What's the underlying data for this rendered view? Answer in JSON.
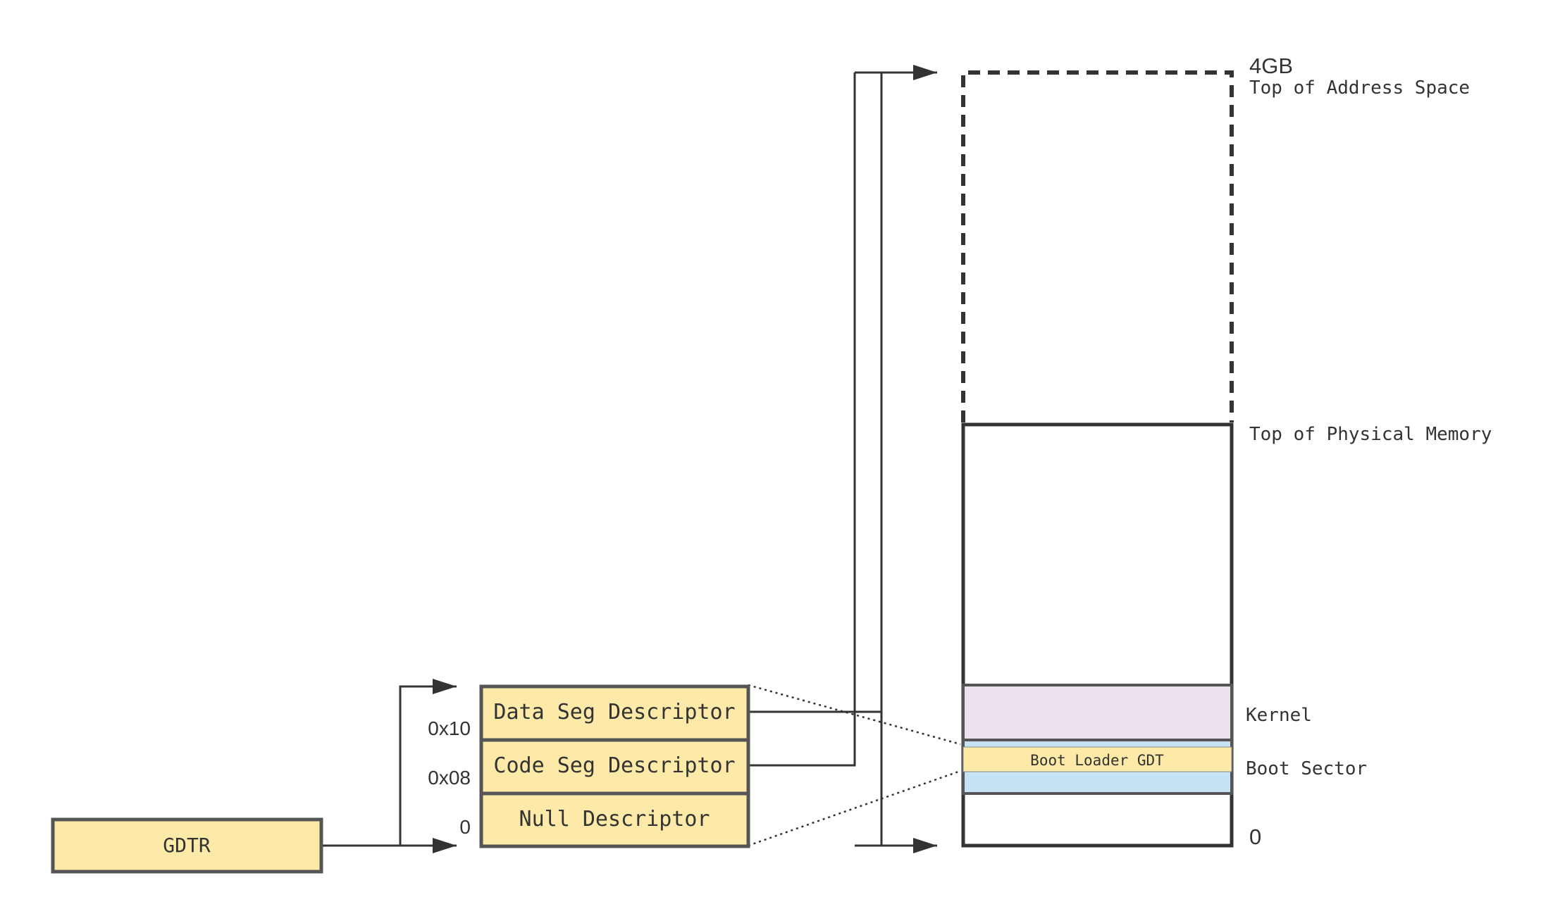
{
  "gdtr": {
    "label": "GDTR"
  },
  "gdt": {
    "entries": [
      {
        "label": "Data Seg Descriptor",
        "offset": "0x10"
      },
      {
        "label": "Code Seg Descriptor",
        "offset": "0x08"
      },
      {
        "label": "Null Descriptor",
        "offset": "0"
      }
    ]
  },
  "memory": {
    "top_label": "4GB",
    "top_desc": "Top of Address Space",
    "phys_label": "Top of Physical Memory",
    "kernel_label": "Kernel",
    "boot_gdt_label": "Boot Loader GDT",
    "boot_sector_label": "Boot Sector",
    "bottom_label": "0"
  },
  "colors": {
    "descriptor_fill": "#fdeaa8",
    "kernel_fill": "#ede0ef",
    "boot_sector_fill": "#c5e3f5",
    "stroke": "#333333",
    "box_stroke": "#555555"
  }
}
